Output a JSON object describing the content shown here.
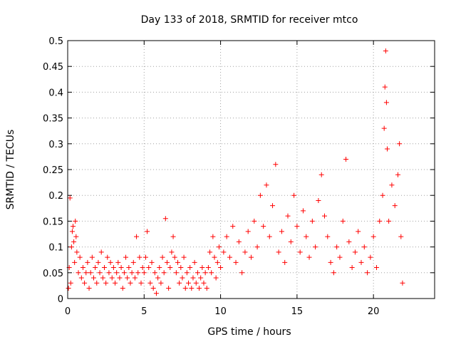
{
  "chart_data": {
    "type": "scatter",
    "title": "Day 133 of 2018, SRMTID for receiver mtco",
    "xlabel": "GPS time / hours",
    "ylabel": "SRMTID / TECUs",
    "xlim": [
      0,
      24
    ],
    "ylim": [
      0,
      0.5
    ],
    "x_ticks": [
      0,
      5,
      10,
      15,
      20
    ],
    "x_tick_labels": [
      "0",
      "5",
      "10",
      "15",
      "20"
    ],
    "y_ticks": [
      0,
      0.05,
      0.1,
      0.15,
      0.2,
      0.25,
      0.3,
      0.35,
      0.4,
      0.45,
      0.5
    ],
    "y_tick_labels": [
      "0",
      "0.05",
      "0.1",
      "0.15",
      "0.2",
      "0.25",
      "0.3",
      "0.35",
      "0.4",
      "0.45",
      "0.5"
    ],
    "grid": true,
    "marker": "+",
    "marker_color": "#ff0000",
    "series": [
      {
        "name": "SRMTID",
        "points": [
          [
            0.05,
            0.02
          ],
          [
            0.1,
            0.06
          ],
          [
            0.15,
            0.195
          ],
          [
            0.2,
            0.03
          ],
          [
            0.25,
            0.1
          ],
          [
            0.3,
            0.13
          ],
          [
            0.35,
            0.14
          ],
          [
            0.4,
            0.11
          ],
          [
            0.45,
            0.07
          ],
          [
            0.5,
            0.15
          ],
          [
            0.55,
            0.12
          ],
          [
            0.6,
            0.09
          ],
          [
            0.7,
            0.05
          ],
          [
            0.8,
            0.08
          ],
          [
            0.9,
            0.04
          ],
          [
            1.0,
            0.06
          ],
          [
            1.1,
            0.03
          ],
          [
            1.2,
            0.05
          ],
          [
            1.3,
            0.07
          ],
          [
            1.4,
            0.02
          ],
          [
            1.5,
            0.05
          ],
          [
            1.6,
            0.08
          ],
          [
            1.7,
            0.04
          ],
          [
            1.8,
            0.06
          ],
          [
            1.9,
            0.03
          ],
          [
            2.0,
            0.07
          ],
          [
            2.1,
            0.05
          ],
          [
            2.2,
            0.09
          ],
          [
            2.3,
            0.04
          ],
          [
            2.4,
            0.06
          ],
          [
            2.5,
            0.03
          ],
          [
            2.6,
            0.08
          ],
          [
            2.7,
            0.05
          ],
          [
            2.8,
            0.07
          ],
          [
            2.9,
            0.04
          ],
          [
            3.0,
            0.06
          ],
          [
            3.1,
            0.03
          ],
          [
            3.2,
            0.05
          ],
          [
            3.3,
            0.07
          ],
          [
            3.4,
            0.04
          ],
          [
            3.5,
            0.06
          ],
          [
            3.6,
            0.02
          ],
          [
            3.7,
            0.05
          ],
          [
            3.8,
            0.08
          ],
          [
            3.9,
            0.04
          ],
          [
            4.0,
            0.06
          ],
          [
            4.1,
            0.03
          ],
          [
            4.2,
            0.05
          ],
          [
            4.3,
            0.07
          ],
          [
            4.4,
            0.04
          ],
          [
            4.5,
            0.12
          ],
          [
            4.6,
            0.05
          ],
          [
            4.7,
            0.08
          ],
          [
            4.8,
            0.03
          ],
          [
            4.9,
            0.06
          ],
          [
            5.0,
            0.05
          ],
          [
            5.1,
            0.08
          ],
          [
            5.2,
            0.13
          ],
          [
            5.3,
            0.06
          ],
          [
            5.4,
            0.03
          ],
          [
            5.5,
            0.07
          ],
          [
            5.6,
            0.02
          ],
          [
            5.7,
            0.05
          ],
          [
            5.8,
            0.01
          ],
          [
            5.9,
            0.04
          ],
          [
            6.0,
            0.06
          ],
          [
            6.1,
            0.03
          ],
          [
            6.2,
            0.08
          ],
          [
            6.3,
            0.05
          ],
          [
            6.4,
            0.155
          ],
          [
            6.5,
            0.07
          ],
          [
            6.6,
            0.02
          ],
          [
            6.7,
            0.06
          ],
          [
            6.8,
            0.09
          ],
          [
            6.9,
            0.12
          ],
          [
            7.0,
            0.08
          ],
          [
            7.1,
            0.05
          ],
          [
            7.2,
            0.07
          ],
          [
            7.3,
            0.03
          ],
          [
            7.4,
            0.06
          ],
          [
            7.5,
            0.04
          ],
          [
            7.6,
            0.08
          ],
          [
            7.7,
            0.02
          ],
          [
            7.8,
            0.05
          ],
          [
            7.9,
            0.03
          ],
          [
            8.0,
            0.06
          ],
          [
            8.1,
            0.02
          ],
          [
            8.2,
            0.04
          ],
          [
            8.3,
            0.07
          ],
          [
            8.4,
            0.03
          ],
          [
            8.5,
            0.05
          ],
          [
            8.6,
            0.02
          ],
          [
            8.7,
            0.04
          ],
          [
            8.8,
            0.06
          ],
          [
            8.9,
            0.03
          ],
          [
            9.0,
            0.05
          ],
          [
            9.1,
            0.02
          ],
          [
            9.2,
            0.06
          ],
          [
            9.3,
            0.09
          ],
          [
            9.4,
            0.05
          ],
          [
            9.5,
            0.12
          ],
          [
            9.6,
            0.08
          ],
          [
            9.7,
            0.04
          ],
          [
            9.8,
            0.07
          ],
          [
            9.9,
            0.1
          ],
          [
            10.0,
            0.06
          ],
          [
            10.2,
            0.09
          ],
          [
            10.4,
            0.12
          ],
          [
            10.6,
            0.08
          ],
          [
            10.8,
            0.14
          ],
          [
            11.0,
            0.07
          ],
          [
            11.2,
            0.11
          ],
          [
            11.4,
            0.05
          ],
          [
            11.6,
            0.09
          ],
          [
            11.8,
            0.13
          ],
          [
            12.0,
            0.08
          ],
          [
            12.2,
            0.15
          ],
          [
            12.4,
            0.1
          ],
          [
            12.6,
            0.2
          ],
          [
            12.8,
            0.14
          ],
          [
            13.0,
            0.22
          ],
          [
            13.2,
            0.12
          ],
          [
            13.4,
            0.18
          ],
          [
            13.6,
            0.26
          ],
          [
            13.8,
            0.09
          ],
          [
            14.0,
            0.13
          ],
          [
            14.2,
            0.07
          ],
          [
            14.4,
            0.16
          ],
          [
            14.6,
            0.11
          ],
          [
            14.8,
            0.2
          ],
          [
            15.0,
            0.14
          ],
          [
            15.2,
            0.09
          ],
          [
            15.4,
            0.17
          ],
          [
            15.6,
            0.12
          ],
          [
            15.8,
            0.08
          ],
          [
            16.0,
            0.15
          ],
          [
            16.2,
            0.1
          ],
          [
            16.4,
            0.19
          ],
          [
            16.6,
            0.24
          ],
          [
            16.8,
            0.16
          ],
          [
            17.0,
            0.12
          ],
          [
            17.2,
            0.07
          ],
          [
            17.4,
            0.05
          ],
          [
            17.6,
            0.1
          ],
          [
            17.8,
            0.08
          ],
          [
            18.0,
            0.15
          ],
          [
            18.2,
            0.27
          ],
          [
            18.4,
            0.11
          ],
          [
            18.6,
            0.06
          ],
          [
            18.8,
            0.09
          ],
          [
            19.0,
            0.13
          ],
          [
            19.2,
            0.07
          ],
          [
            19.4,
            0.1
          ],
          [
            19.6,
            0.05
          ],
          [
            19.8,
            0.08
          ],
          [
            20.0,
            0.12
          ],
          [
            20.2,
            0.06
          ],
          [
            20.4,
            0.15
          ],
          [
            20.6,
            0.2
          ],
          [
            20.7,
            0.33
          ],
          [
            20.75,
            0.41
          ],
          [
            20.8,
            0.48
          ],
          [
            20.85,
            0.38
          ],
          [
            20.9,
            0.29
          ],
          [
            21.0,
            0.15
          ],
          [
            21.2,
            0.22
          ],
          [
            21.4,
            0.18
          ],
          [
            21.6,
            0.24
          ],
          [
            21.7,
            0.3
          ],
          [
            21.8,
            0.12
          ],
          [
            21.9,
            0.03
          ]
        ]
      }
    ]
  }
}
